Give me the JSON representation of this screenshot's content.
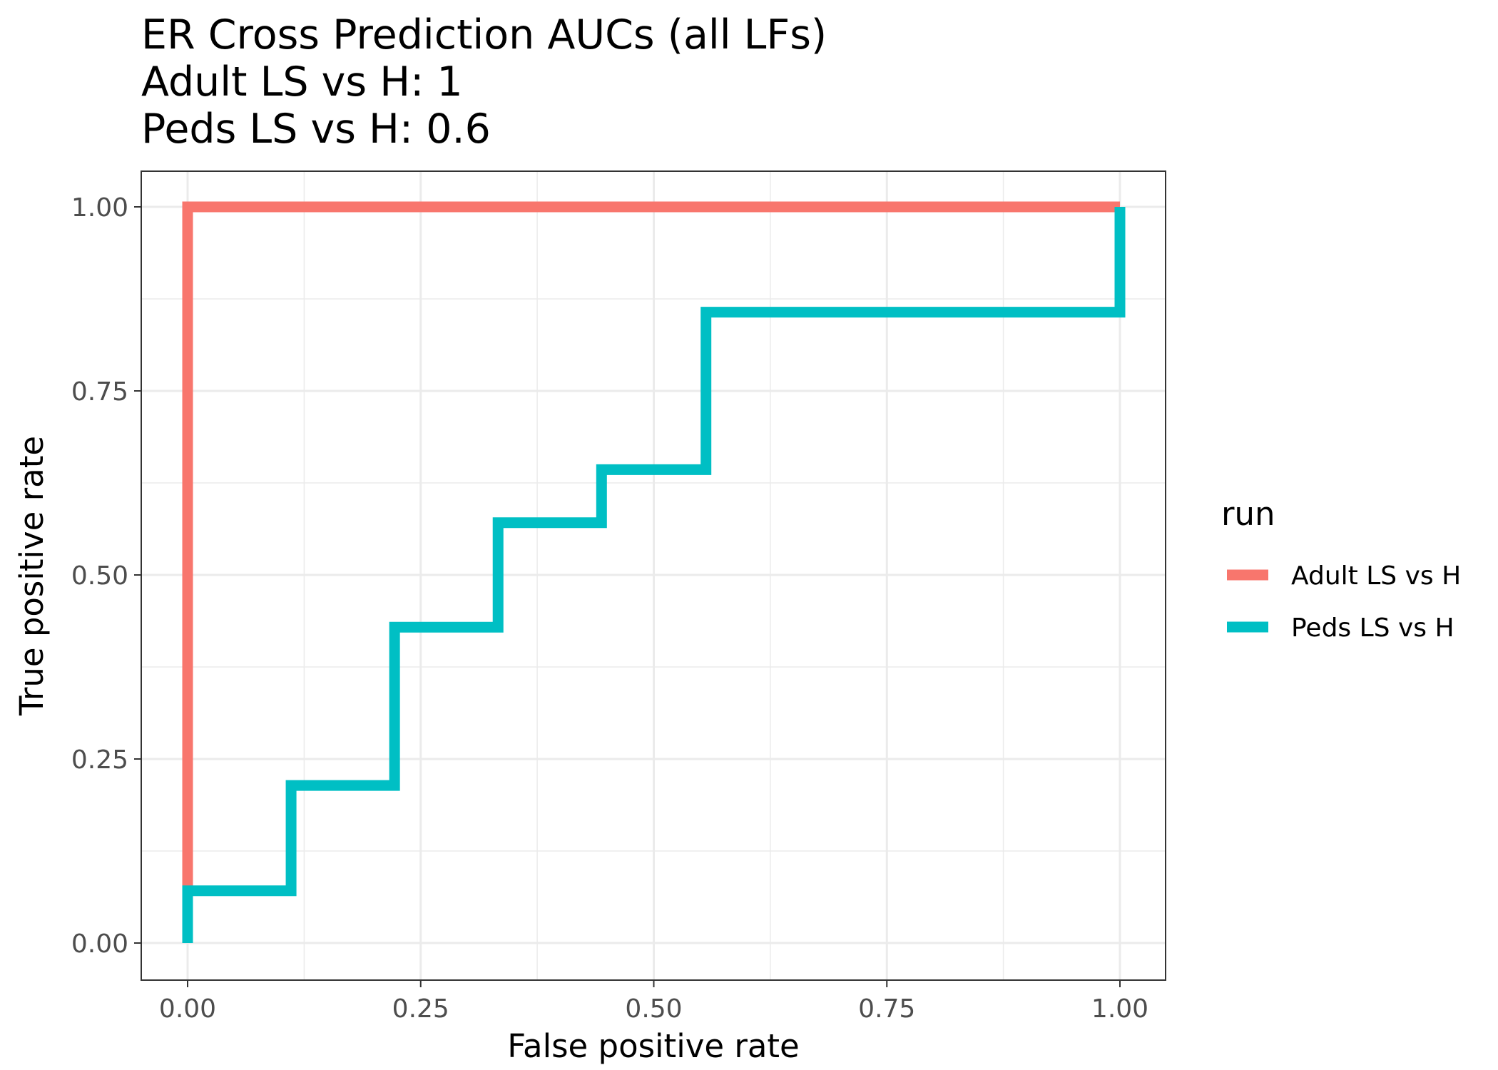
{
  "chart_data": {
    "type": "line",
    "title_lines": [
      "ER Cross Prediction AUCs (all LFs)",
      "Adult LS vs H: 1",
      "Peds LS vs H: 0.6"
    ],
    "xlabel": "False positive rate",
    "ylabel": "True positive rate",
    "xlim": [
      -0.095,
      2.1
    ],
    "ylim": [
      -0.095,
      1.05
    ],
    "x_ticks": [
      0,
      0.25,
      0.5,
      0.75,
      1
    ],
    "x_tick_labels": [
      "0.00",
      "0.25",
      "0.50",
      "0.75",
      "1.00"
    ],
    "y_ticks": [
      0,
      0.25,
      0.5,
      0.75,
      1
    ],
    "y_tick_labels": [
      "0.00",
      "0.25",
      "0.50",
      "0.75",
      "1.00"
    ],
    "grid": true,
    "legend": {
      "title": "run",
      "placement": "right"
    },
    "series": [
      {
        "name": "Adult LS vs H",
        "color": "#F8766D",
        "x": [
          0,
          0,
          1
        ],
        "y": [
          0,
          1,
          1
        ]
      },
      {
        "name": "Peds LS vs H",
        "color": "#00BFC4",
        "x": [
          0,
          0,
          0.111,
          0.111,
          0.222,
          0.222,
          0.333,
          0.333,
          0.444,
          0.444,
          0.556,
          0.556,
          1,
          1
        ],
        "y": [
          0,
          0.071,
          0.071,
          0.214,
          0.214,
          0.429,
          0.429,
          0.571,
          0.571,
          0.643,
          0.643,
          0.857,
          0.857,
          1
        ]
      }
    ]
  }
}
